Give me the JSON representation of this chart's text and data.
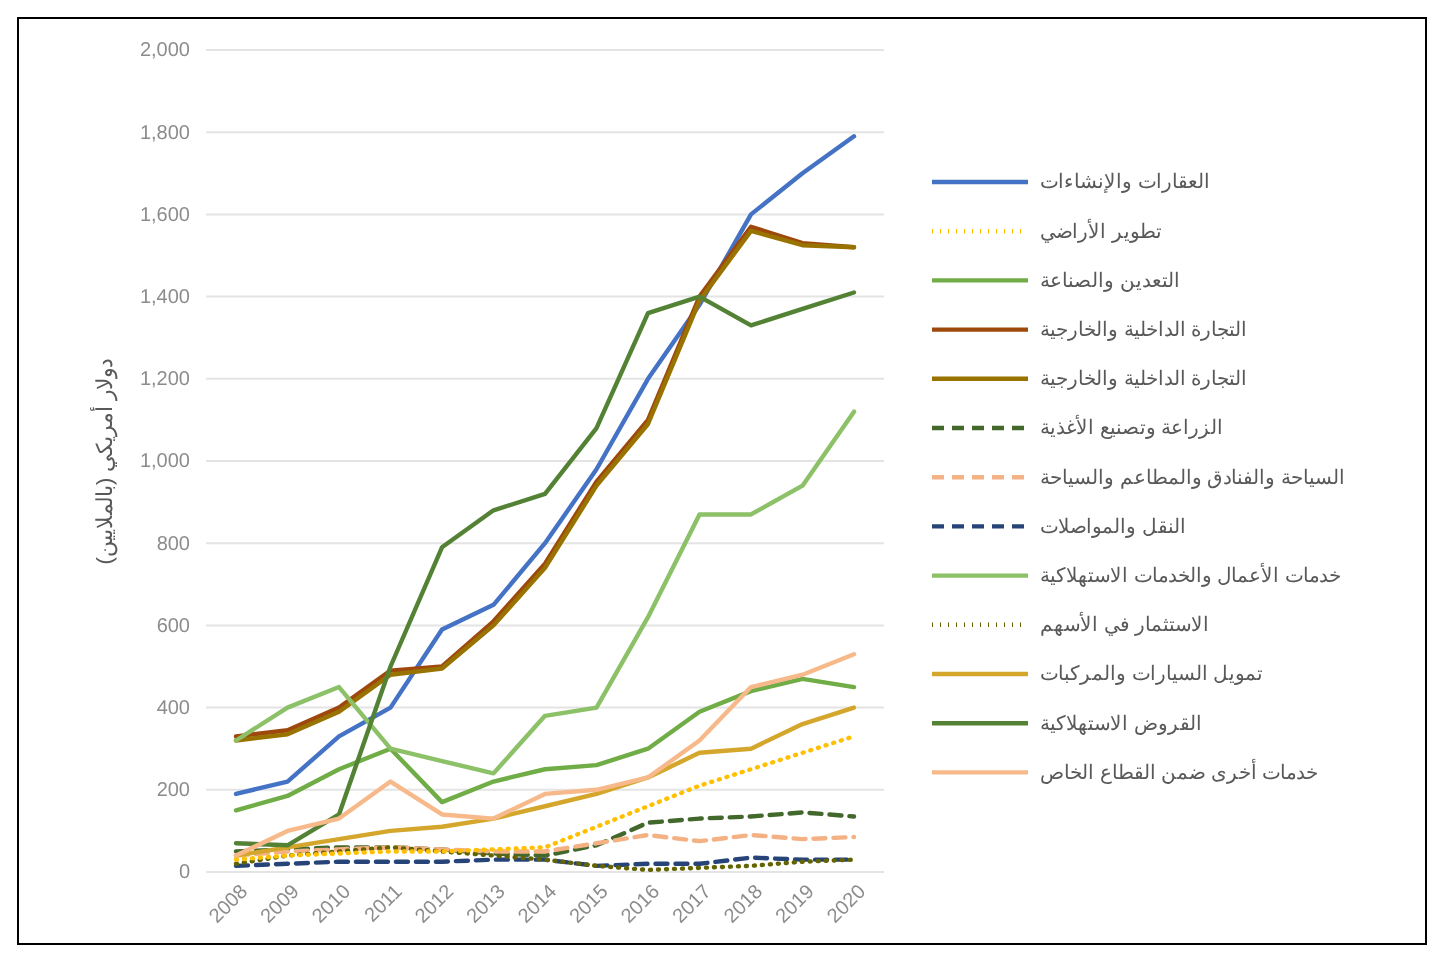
{
  "chart_data": {
    "type": "line",
    "ylabel": "دولار أمريكي (بالملايين)",
    "categories": [
      "2008",
      "2009",
      "2010",
      "2011",
      "2012",
      "2013",
      "2014",
      "2015",
      "2016",
      "2017",
      "2018",
      "2019",
      "2020"
    ],
    "ylim": [
      0,
      2000
    ],
    "yticks": [
      0,
      {
        "value": 200,
        "label": "200"
      },
      {
        "value": 400,
        "label": "400"
      },
      {
        "value": 600,
        "label": "600"
      },
      {
        "value": 800,
        "label": "800"
      },
      {
        "value": 1000,
        "label": "1,000"
      },
      {
        "value": 1200,
        "label": "1,200"
      },
      {
        "value": 1400,
        "label": "1,400"
      },
      {
        "value": 1600,
        "label": "1,600"
      },
      {
        "value": 1800,
        "label": "1,800"
      },
      {
        "value": 2000,
        "label": "2,000"
      }
    ],
    "grid": "y",
    "legend": "right",
    "series": [
      {
        "name": "العقارات والإنشاءات",
        "color": "#4472c4",
        "marker": "none",
        "line_style": "solid",
        "values": [
          190,
          220,
          330,
          400,
          590,
          650,
          800,
          980,
          1200,
          1380,
          1600,
          1700,
          1790
        ]
      },
      {
        "name": "تطوير الأراضي",
        "color": "#ffc000",
        "marker": "none",
        "line_style": "dotted",
        "values": [
          30,
          40,
          45,
          50,
          50,
          55,
          60,
          110,
          160,
          210,
          250,
          290,
          330
        ]
      },
      {
        "name": "التعدين والصناعة",
        "color": "#70ad47",
        "marker": "none",
        "line_style": "solid",
        "values": [
          150,
          185,
          250,
          300,
          170,
          220,
          250,
          260,
          300,
          390,
          440,
          470,
          450
        ]
      },
      {
        "name": "التجارة الداخلية والخارجية",
        "color": "#9e480e",
        "marker": "none",
        "line_style": "solid",
        "values": [
          330,
          345,
          400,
          490,
          500,
          610,
          750,
          950,
          1100,
          1400,
          1570,
          1530,
          1520
        ]
      },
      {
        "name": "التجارة الداخلية والخارجية",
        "color": "#997300",
        "marker": "none",
        "line_style": "solid",
        "values": [
          320,
          335,
          390,
          480,
          495,
          600,
          740,
          940,
          1090,
          1390,
          1560,
          1525,
          1520
        ]
      },
      {
        "name": "الزراعة وتصنيع الأغذية",
        "color": "#43682b",
        "marker": "none",
        "line_style": "dashed",
        "values": [
          50,
          55,
          60,
          60,
          55,
          45,
          40,
          65,
          120,
          130,
          135,
          145,
          135
        ]
      },
      {
        "name": "السياحة والفنادق والمطاعم والسياحة",
        "color": "#f4b183",
        "marker": "none",
        "line_style": "dashed",
        "values": [
          40,
          50,
          55,
          60,
          55,
          50,
          50,
          70,
          90,
          75,
          90,
          80,
          85
        ]
      },
      {
        "name": "النقل والمواصلات",
        "color": "#264478",
        "marker": "none",
        "line_style": "dashed",
        "values": [
          15,
          20,
          25,
          25,
          25,
          30,
          30,
          15,
          20,
          20,
          35,
          30,
          30
        ]
      },
      {
        "name": "خدمات الأعمال والخدمات الاستهلاكية",
        "color": "#8cc168",
        "marker": "none",
        "line_style": "solid",
        "values": [
          320,
          400,
          450,
          300,
          270,
          240,
          380,
          400,
          620,
          870,
          870,
          940,
          1120
        ]
      },
      {
        "name": "الاستثمار في الأسهم",
        "color": "#636300",
        "marker": "none",
        "line_style": "dotted",
        "values": [
          20,
          40,
          50,
          60,
          50,
          40,
          30,
          15,
          5,
          10,
          15,
          25,
          30
        ]
      },
      {
        "name": "تمويل السيارات والمركبات",
        "color": "#d4a72c",
        "marker": "none",
        "line_style": "solid",
        "values": [
          40,
          60,
          80,
          100,
          110,
          130,
          160,
          190,
          230,
          290,
          300,
          360,
          400
        ]
      },
      {
        "name": "القروض الاستهلاكية",
        "color": "#548235",
        "marker": "none",
        "line_style": "solid",
        "values": [
          70,
          65,
          140,
          500,
          790,
          880,
          920,
          1080,
          1360,
          1400,
          1330,
          1370,
          1410
        ]
      },
      {
        "name": "خدمات أخرى ضمن القطاع الخاص",
        "color": "#f8b98a",
        "marker": "none",
        "line_style": "solid",
        "values": [
          40,
          100,
          130,
          220,
          140,
          130,
          190,
          200,
          230,
          320,
          450,
          480,
          530
        ]
      }
    ]
  }
}
